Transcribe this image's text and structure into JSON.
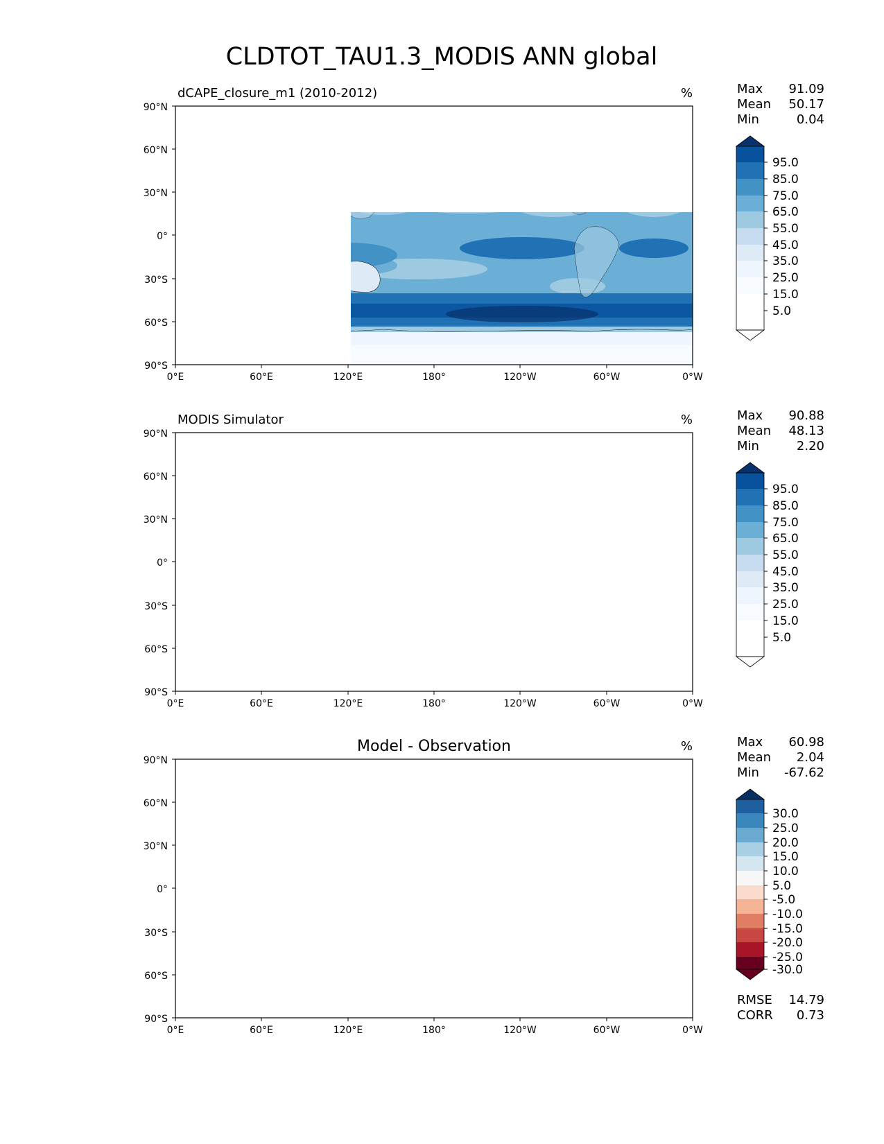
{
  "figure": {
    "title": "CLDTOT_TAU1.3_MODIS ANN global"
  },
  "axes": {
    "lat_ticks": [
      "90°N",
      "60°N",
      "30°N",
      "0°",
      "30°S",
      "60°S",
      "90°S"
    ],
    "lon_ticks": [
      "0°E",
      "60°E",
      "120°E",
      "180°",
      "120°W",
      "60°W",
      "0°W"
    ]
  },
  "panels": [
    {
      "id": "test",
      "title": "dCAPE_closure_m1 (2010-2012)",
      "title_style": "left",
      "units": "%",
      "stats": [
        {
          "label": "Max",
          "value": "91.09"
        },
        {
          "label": "Mean",
          "value": "50.17"
        },
        {
          "label": "Min",
          "value": "0.04"
        }
      ],
      "colorbar": {
        "colormap": "Blues",
        "labels": [
          "95.0",
          "85.0",
          "75.0",
          "65.0",
          "55.0",
          "45.0",
          "35.0",
          "25.0",
          "15.0",
          "5.0"
        ],
        "colors": [
          "#08306b",
          "#08519c",
          "#2171b5",
          "#4292c6",
          "#6baed6",
          "#9ecae1",
          "#c6dbef",
          "#deebf7",
          "#eef5fc",
          "#f7fbff",
          "#ffffff"
        ]
      }
    },
    {
      "id": "reference",
      "title": "MODIS Simulator",
      "title_style": "left",
      "units": "%",
      "stats": [
        {
          "label": "Max",
          "value": "90.88"
        },
        {
          "label": "Mean",
          "value": "48.13"
        },
        {
          "label": "Min",
          "value": "2.20"
        }
      ],
      "colorbar": {
        "colormap": "Blues",
        "labels": [
          "95.0",
          "85.0",
          "75.0",
          "65.0",
          "55.0",
          "45.0",
          "35.0",
          "25.0",
          "15.0",
          "5.0"
        ],
        "colors": [
          "#08306b",
          "#08519c",
          "#2171b5",
          "#4292c6",
          "#6baed6",
          "#9ecae1",
          "#c6dbef",
          "#deebf7",
          "#eef5fc",
          "#f7fbff",
          "#ffffff"
        ]
      }
    },
    {
      "id": "difference",
      "title": "Model - Observation",
      "title_style": "center",
      "units": "%",
      "stats": [
        {
          "label": "Max",
          "value": "60.98"
        },
        {
          "label": "Mean",
          "value": "2.04"
        },
        {
          "label": "Min",
          "value": "-67.62"
        }
      ],
      "colorbar": {
        "colormap": "RdBu",
        "labels": [
          "30.0",
          "25.0",
          "20.0",
          "15.0",
          "10.0",
          "5.0",
          "-5.0",
          "-10.0",
          "-15.0",
          "-20.0",
          "-25.0",
          "-30.0"
        ],
        "colors": [
          "#053061",
          "#1e5fa0",
          "#3a87bd",
          "#6aa9d0",
          "#a9cfe4",
          "#d3e6f0",
          "#f7f7f7",
          "#fbdccc",
          "#f4b394",
          "#e07e65",
          "#c94743",
          "#a81529",
          "#67001f"
        ]
      },
      "metrics": [
        {
          "label": "RMSE",
          "value": "14.79"
        },
        {
          "label": "CORR",
          "value": "0.73"
        }
      ]
    }
  ]
}
